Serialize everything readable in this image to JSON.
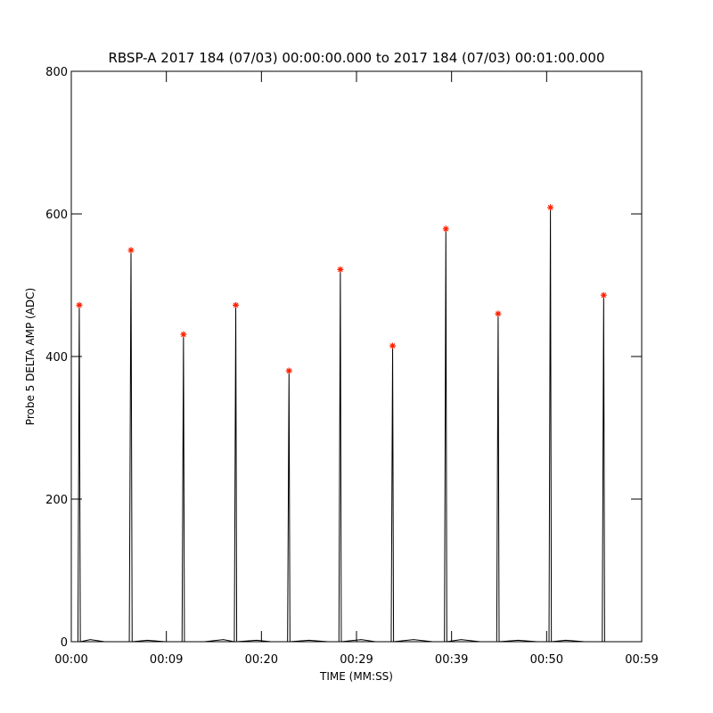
{
  "chart_data": {
    "type": "line",
    "title": "RBSP-A 2017 184 (07/03) 00:00:00.000 to 2017 184 (07/03) 00:01:00.000",
    "x_label": "TIME (MM:SS)",
    "y_label": "Probe 5 DELTA AMP (ADC)",
    "xlim": [
      0,
      60
    ],
    "ylim": [
      0,
      800
    ],
    "xticks": [
      {
        "value": 0,
        "label": "00:00"
      },
      {
        "value": 10,
        "label": "00:09"
      },
      {
        "value": 20,
        "label": "00:20"
      },
      {
        "value": 30,
        "label": "00:29"
      },
      {
        "value": 40,
        "label": "00:39"
      },
      {
        "value": 50,
        "label": "00:50"
      },
      {
        "value": 60,
        "label": "00:59"
      }
    ],
    "yticks": [
      0,
      200,
      400,
      600,
      800
    ],
    "x": [
      0,
      0.7,
      0.84,
      0.95,
      2,
      3.5,
      6.1,
      6.28,
      6.4,
      8,
      9.9,
      11.65,
      11.8,
      11.9,
      14,
      16,
      17.15,
      17.3,
      17.4,
      19.5,
      21,
      22.75,
      22.9,
      23.0,
      25,
      27,
      28.15,
      28.3,
      28.4,
      30.5,
      32,
      33.65,
      33.8,
      33.9,
      36,
      38,
      39.25,
      39.4,
      39.5,
      41,
      43,
      44.75,
      44.9,
      45.0,
      47,
      49,
      50.25,
      50.4,
      50.5,
      52,
      54,
      55.85,
      56.0,
      56.1,
      58,
      60
    ],
    "series": [
      {
        "color": "#000000",
        "values": [
          0,
          0,
          472,
          0,
          3,
          0,
          0,
          549,
          0,
          2,
          0,
          0,
          431,
          0,
          0,
          3,
          0,
          472,
          0,
          2,
          0,
          0,
          380,
          0,
          2,
          0,
          0,
          522,
          0,
          3,
          0,
          0,
          415,
          0,
          3,
          0,
          0,
          579,
          0,
          3,
          0,
          0,
          460,
          0,
          2,
          0,
          0,
          609,
          0,
          2,
          0,
          0,
          486,
          0,
          0,
          0
        ]
      }
    ],
    "peaks": {
      "color": "#ff2000",
      "x": [
        0.84,
        6.28,
        11.8,
        17.3,
        22.9,
        28.3,
        33.8,
        39.4,
        44.9,
        50.4,
        56.0
      ],
      "values": [
        472,
        549,
        431,
        472,
        380,
        522,
        415,
        579,
        460,
        609,
        486
      ]
    }
  }
}
